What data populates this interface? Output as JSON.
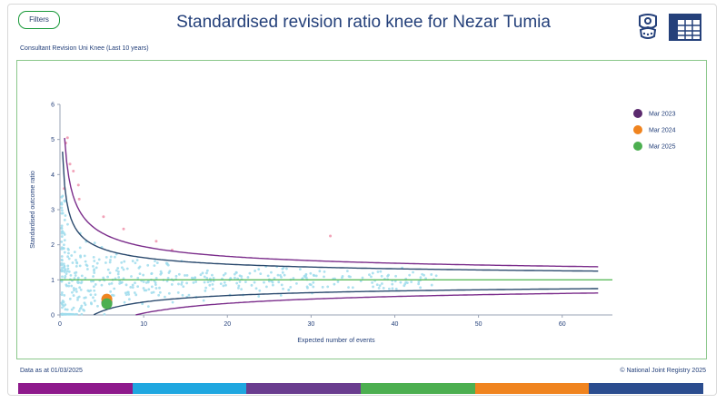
{
  "header": {
    "filters_label": "Filters",
    "title": "Standardised revision ratio knee for Nezar Tumia",
    "subtitle": "Consultant Revision Uni Knee (Last 10 years)"
  },
  "footer": {
    "data_as_at": "Data as at 01/03/2025",
    "copyright": "© National Joint Registry 2025"
  },
  "icons": [
    "knee-implant-icon",
    "table-icon"
  ],
  "color_strip": [
    "#8e1a8c",
    "#1fa7e0",
    "#6a3d8f",
    "#4caf50",
    "#f0841f",
    "#2b4d8f"
  ],
  "chart_data": {
    "type": "scatter",
    "title": "",
    "xlabel": "Expected number of events",
    "ylabel": "Standardised outcome ratio",
    "xlim": [
      0,
      66
    ],
    "ylim": [
      0,
      6
    ],
    "xticks": [
      0,
      10,
      20,
      30,
      40,
      50,
      60
    ],
    "yticks": [
      0,
      1,
      2,
      3,
      4,
      5,
      6
    ],
    "reference_line": 1,
    "legend": {
      "placement": "right",
      "entries": [
        {
          "label": "Mar 2023",
          "color": "#5b2a6e"
        },
        {
          "label": "Mar 2024",
          "color": "#f0841f"
        },
        {
          "label": "Mar 2025",
          "color": "#4caf50"
        }
      ]
    },
    "highlighted_points": [
      {
        "label": "Mar 2023",
        "x": 5.6,
        "y": 0.35,
        "color": "#5b2a6e"
      },
      {
        "label": "Mar 2024",
        "x": 5.6,
        "y": 0.45,
        "color": "#f0841f"
      },
      {
        "label": "Mar 2025",
        "x": 5.6,
        "y": 0.32,
        "color": "#4caf50"
      }
    ],
    "outlier_points": [
      {
        "x": 0.9,
        "y": 5.05
      },
      {
        "x": 0.7,
        "y": 4.9
      },
      {
        "x": 1.2,
        "y": 4.3
      },
      {
        "x": 1.6,
        "y": 4.1
      },
      {
        "x": 0.5,
        "y": 3.6
      },
      {
        "x": 2.2,
        "y": 3.7
      },
      {
        "x": 2.3,
        "y": 3.3
      },
      {
        "x": 5.2,
        "y": 2.8
      },
      {
        "x": 7.6,
        "y": 2.45
      },
      {
        "x": 11.5,
        "y": 2.1
      },
      {
        "x": 13.4,
        "y": 1.85
      },
      {
        "x": 32.3,
        "y": 2.25
      }
    ],
    "funnel_limits": [
      {
        "name": "",
        "color": "#7b2d8b",
        "k": 3.0
      },
      {
        "name": "",
        "color": "#2b4a6e",
        "k": 2.0
      }
    ]
  }
}
